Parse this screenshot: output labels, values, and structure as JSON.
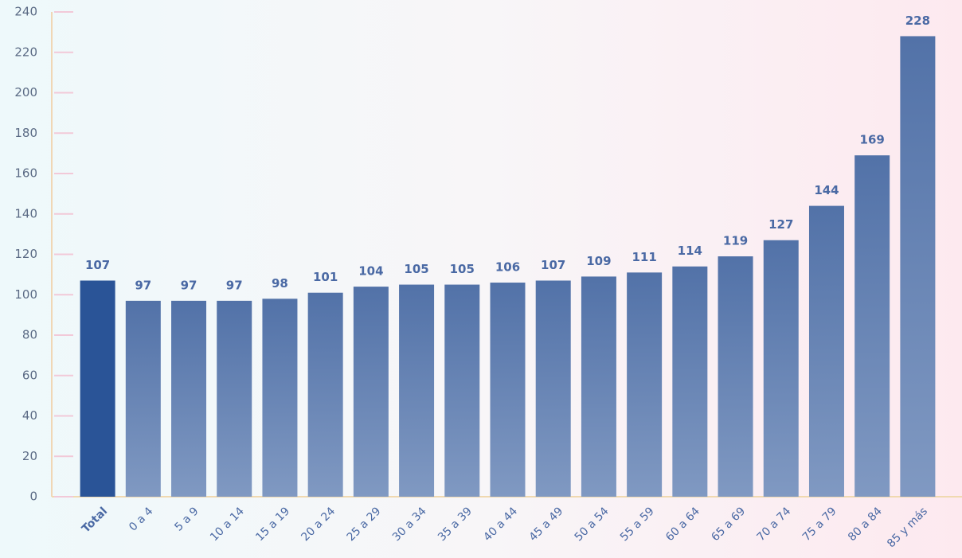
{
  "chart_data": {
    "type": "bar",
    "categories": [
      "Total",
      "0 a 4",
      "5 a 9",
      "10 a 14",
      "15 a 19",
      "20 a 24",
      "25 a 29",
      "30 a 34",
      "35 a 39",
      "40 a 44",
      "45 a 49",
      "50 a 54",
      "55 a 59",
      "60 a 64",
      "65 a 69",
      "70 a 74",
      "75 a 79",
      "80 a 84",
      "85 y más"
    ],
    "values": [
      107,
      97,
      97,
      97,
      98,
      101,
      104,
      105,
      105,
      106,
      107,
      109,
      111,
      114,
      119,
      127,
      144,
      169,
      228
    ],
    "color": "#5a76ab",
    "highlight": 0,
    "highlight_color": "#2a5497",
    "ylim": [
      0,
      240
    ],
    "yticks": [
      0,
      20,
      40,
      60,
      80,
      100,
      120,
      140,
      160,
      180,
      200,
      220,
      240
    ],
    "grid": true
  }
}
